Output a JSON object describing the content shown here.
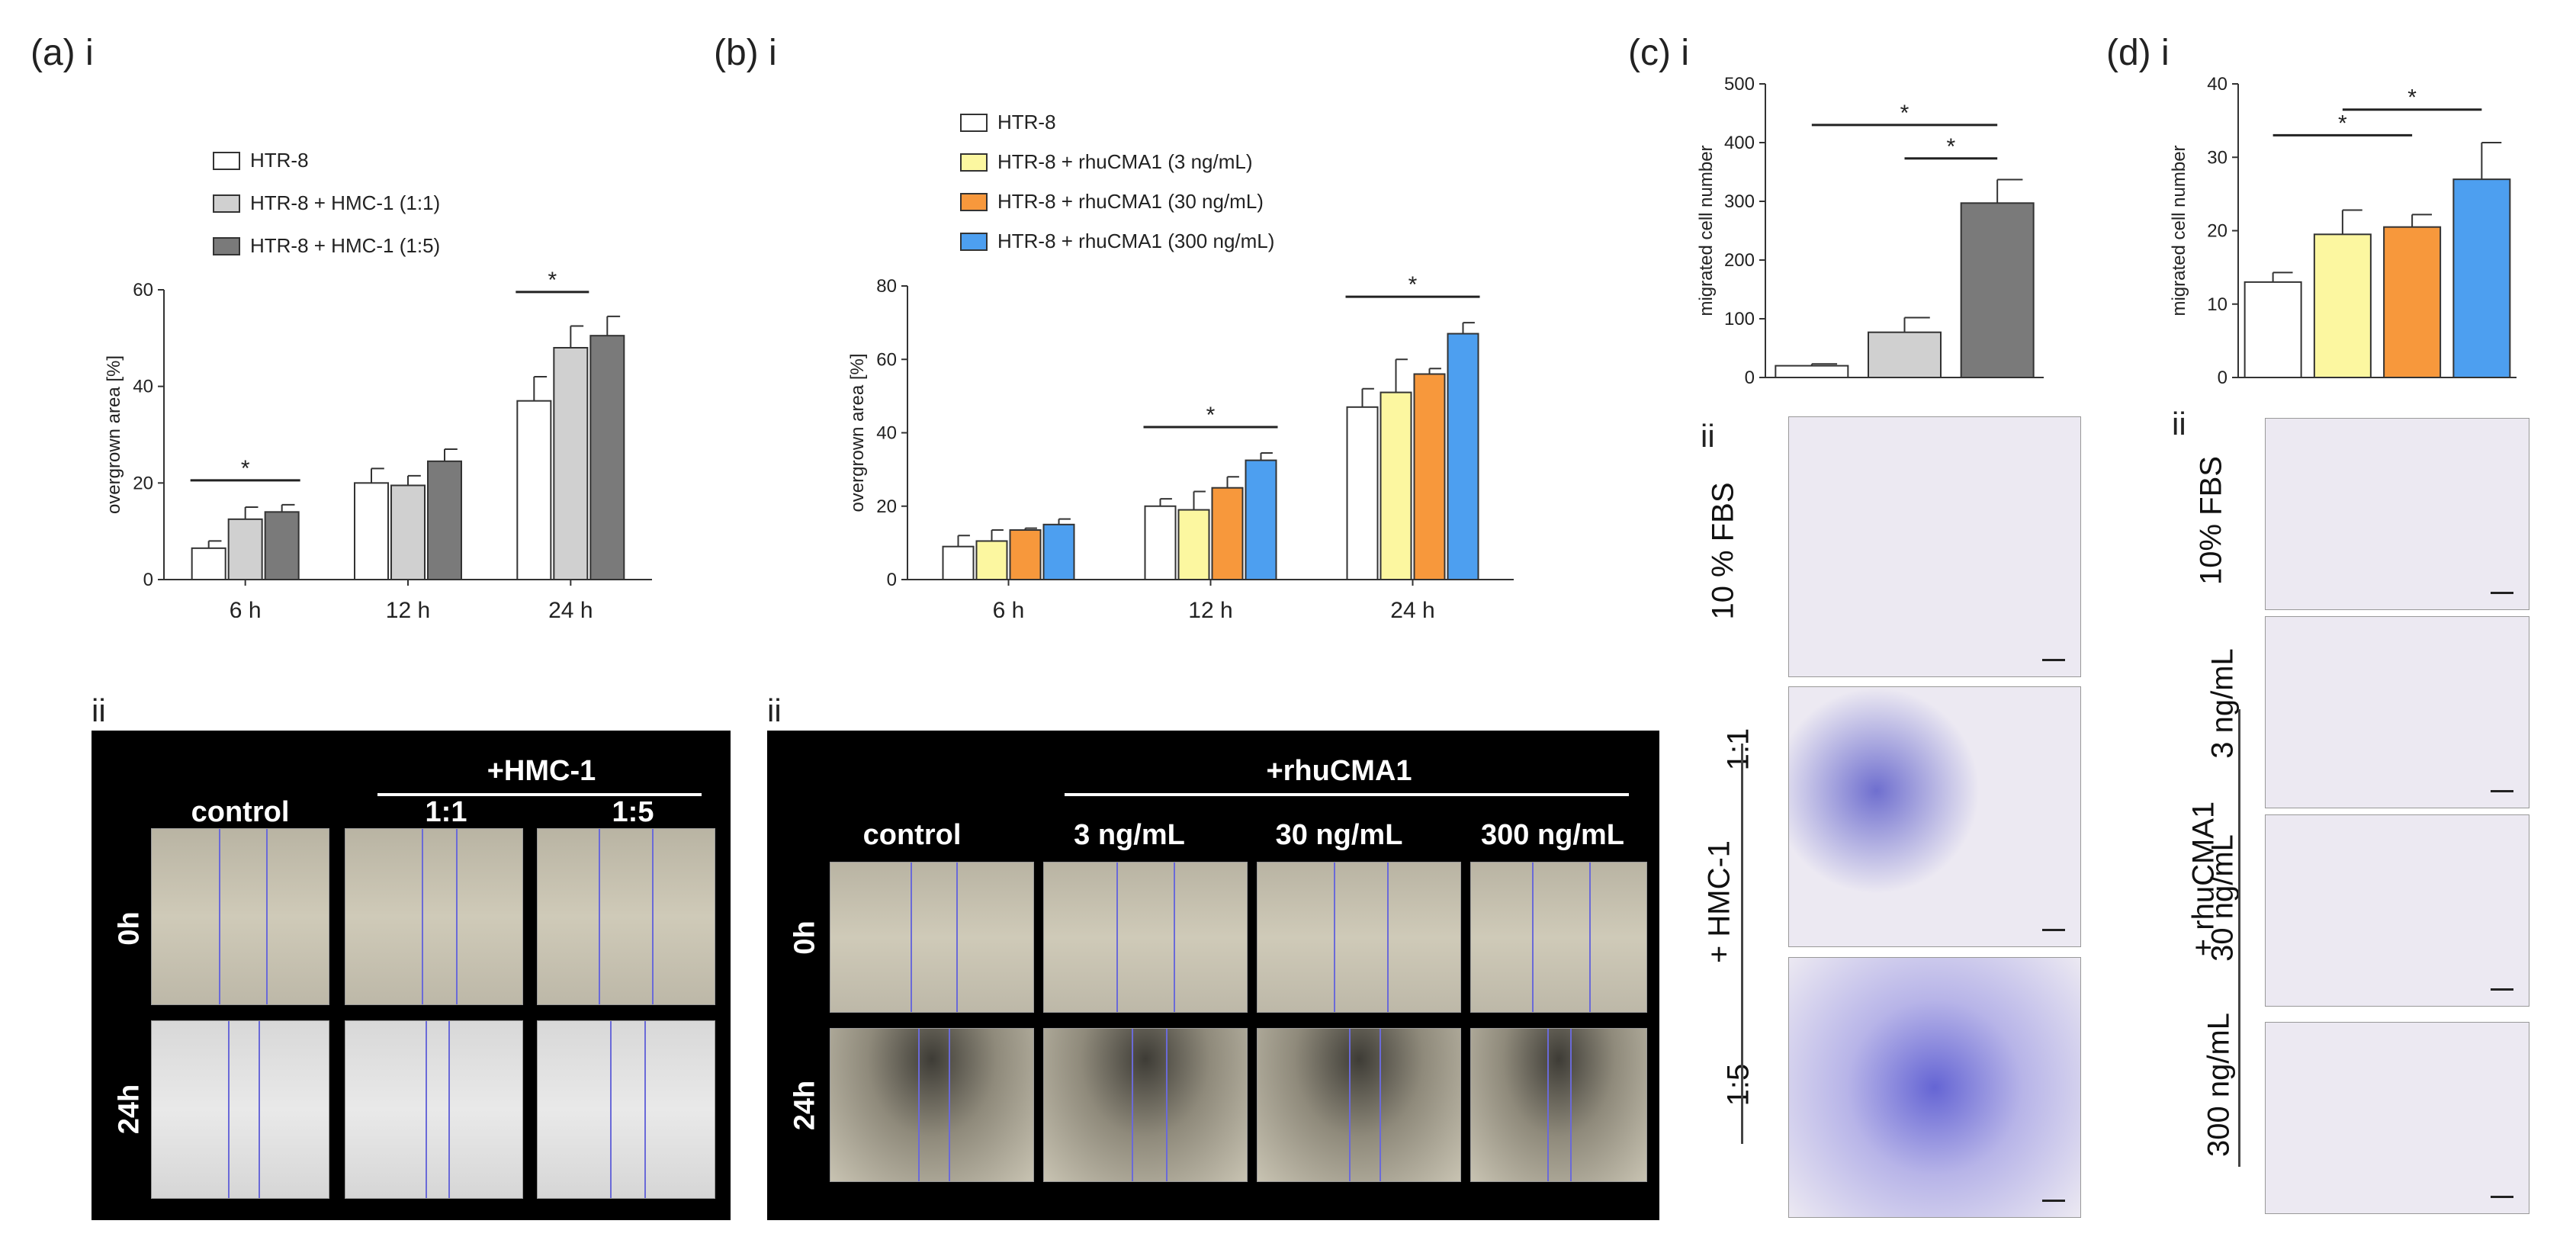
{
  "panels": {
    "a": {
      "label": "(a)",
      "sub_i": "i",
      "sub_ii": "ii"
    },
    "b": {
      "label": "(b)",
      "sub_i": "i",
      "sub_ii": "ii"
    },
    "c": {
      "label": "(c)",
      "sub_i": "i",
      "sub_ii": "ii"
    },
    "d": {
      "label": "(d)",
      "sub_i": "i",
      "sub_ii": "ii"
    }
  },
  "colors": {
    "white": "#ffffff",
    "light_gray": "#d0d0d0",
    "dark_gray": "#7a7a7a",
    "yellow": "#fcf7a0",
    "orange": "#f7983c",
    "blue": "#4d9ff0"
  },
  "chart_data": [
    {
      "id": "a",
      "type": "bar",
      "ylabel": "overgrown area [%]",
      "ylim": [
        0,
        60
      ],
      "yticks": [
        "0",
        "20",
        "40",
        "60"
      ],
      "categories": [
        "6 h",
        "12 h",
        "24 h"
      ],
      "legend_placement": "top",
      "series": [
        {
          "name": "HTR-8",
          "color": "#ffffff",
          "values": [
            6.5,
            20,
            37
          ],
          "errors": [
            1.5,
            3,
            5
          ]
        },
        {
          "name": "HTR-8 + HMC-1 (1:1)",
          "color": "#d0d0d0",
          "values": [
            12.5,
            19.5,
            48
          ],
          "errors": [
            2.5,
            2,
            4.5
          ]
        },
        {
          "name": "HTR-8 + HMC-1 (1:5)",
          "color": "#7a7a7a",
          "values": [
            14,
            24.5,
            50.5
          ],
          "errors": [
            1.5,
            2.5,
            4
          ]
        }
      ],
      "annotations": [
        {
          "text": "*",
          "from_series": 0,
          "to_series": 2,
          "category": 0
        },
        {
          "text": "*",
          "from_series": 0,
          "to_series": 1,
          "category": 2
        }
      ]
    },
    {
      "id": "b",
      "type": "bar",
      "ylabel": "overgrown area [%]",
      "ylim": [
        0,
        80
      ],
      "yticks": [
        "0",
        "20",
        "40",
        "60",
        "80"
      ],
      "categories": [
        "6 h",
        "12 h",
        "24 h"
      ],
      "legend_placement": "top",
      "series": [
        {
          "name": "HTR-8",
          "color": "#ffffff",
          "values": [
            9,
            20,
            47
          ],
          "errors": [
            3,
            2,
            5
          ]
        },
        {
          "name": "HTR-8 + rhuCMA1 (3 ng/mL)",
          "color": "#fcf7a0",
          "values": [
            10.5,
            19,
            51
          ],
          "errors": [
            3,
            5,
            9
          ]
        },
        {
          "name": "HTR-8 + rhuCMA1 (30 ng/mL)",
          "color": "#f7983c",
          "values": [
            13.5,
            25,
            56
          ],
          "errors": [
            0.5,
            3,
            1.5
          ]
        },
        {
          "name": "HTR-8 + rhuCMA1 (300 ng/mL)",
          "color": "#4d9ff0",
          "values": [
            15,
            32.5,
            67
          ],
          "errors": [
            1.5,
            2,
            3
          ]
        }
      ],
      "annotations": [
        {
          "text": "*",
          "from_series": 0,
          "to_series": 3,
          "category": 1
        },
        {
          "text": "*",
          "from_series": 0,
          "to_series": 3,
          "category": 2
        }
      ]
    },
    {
      "id": "c",
      "type": "bar",
      "ylabel": "migrated cell number",
      "ylim": [
        0,
        500
      ],
      "yticks": [
        "0",
        "100",
        "200",
        "300",
        "400",
        "500"
      ],
      "bars": [
        {
          "color": "#ffffff",
          "value": 20,
          "error": 3
        },
        {
          "color": "#d0d0d0",
          "value": 77,
          "error": 25
        },
        {
          "color": "#7a7a7a",
          "value": 297,
          "error": 40
        }
      ],
      "annotations": [
        {
          "text": "*",
          "from_bar": 0,
          "to_bar": 2,
          "level": 430
        },
        {
          "text": "*",
          "from_bar": 1,
          "to_bar": 2,
          "level": 373
        }
      ]
    },
    {
      "id": "d",
      "type": "bar",
      "ylabel": "migrated cell number",
      "ylim": [
        0,
        40
      ],
      "yticks": [
        "0",
        "10",
        "20",
        "30",
        "40"
      ],
      "bars": [
        {
          "color": "#ffffff",
          "value": 13,
          "error": 1.3
        },
        {
          "color": "#fcf7a0",
          "value": 19.5,
          "error": 3.3
        },
        {
          "color": "#f7983c",
          "value": 20.5,
          "error": 1.7
        },
        {
          "color": "#4d9ff0",
          "value": 27,
          "error": 5
        }
      ],
      "annotations": [
        {
          "text": "*",
          "from_bar": 0,
          "to_bar": 2,
          "level": 33
        },
        {
          "text": "*",
          "from_bar": 1,
          "to_bar": 3,
          "level": 36.5
        }
      ]
    }
  ],
  "wound_a": {
    "group_label": "+HMC-1",
    "columns": [
      "control",
      "1:1",
      "1:5"
    ],
    "rows": [
      "0h",
      "24h"
    ]
  },
  "wound_b": {
    "group_label": "+rhuCMA1",
    "columns": [
      "control",
      "3 ng/mL",
      "30 ng/mL",
      "300 ng/mL"
    ],
    "rows": [
      "0h",
      "24h"
    ]
  },
  "transwell_c": {
    "row_labels": [
      "10 % FBS",
      "1:1",
      "1:5"
    ],
    "group_label": "+ HMC-1"
  },
  "transwell_d": {
    "row_labels": [
      "10% FBS",
      "3 ng/mL",
      "30 ng/mL",
      "300 ng/mL"
    ],
    "group_label": "+ rhuCMA1"
  }
}
